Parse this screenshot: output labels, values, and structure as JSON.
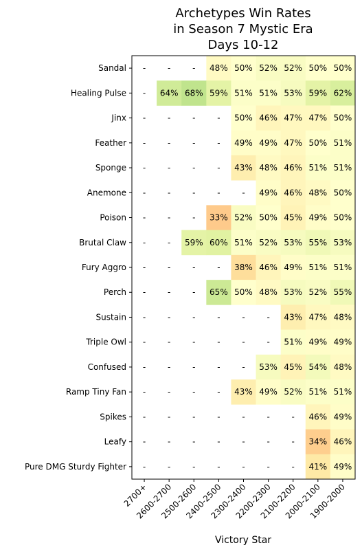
{
  "chart_data": {
    "type": "heatmap",
    "title": [
      "Archetypes Win Rates",
      "in Season 7 Mystic Era",
      "Days 10-12"
    ],
    "xlabel": "Victory Star",
    "ylabel": "",
    "x": [
      "2700+",
      "2600-2700",
      "2500-2600",
      "2400-2500",
      "2300-2400",
      "2200-2300",
      "2100-2200",
      "2000-2100",
      "1900-2000"
    ],
    "y": [
      "Sandal",
      "Healing Pulse",
      "Jinx",
      "Feather",
      "Sponge",
      "Anemone",
      "Poison",
      "Brutal Claw",
      "Fury Aggro",
      "Perch",
      "Sustain",
      "Triple Owl",
      "Confused",
      "Ramp Tiny Fan",
      "Spikes",
      "Leafy",
      "Pure DMG Sturdy Fighter"
    ],
    "values": [
      [
        null,
        null,
        null,
        48,
        50,
        52,
        52,
        50,
        50
      ],
      [
        null,
        64,
        68,
        59,
        51,
        51,
        53,
        59,
        62
      ],
      [
        null,
        null,
        null,
        null,
        50,
        46,
        47,
        47,
        50
      ],
      [
        null,
        null,
        null,
        null,
        49,
        49,
        47,
        50,
        51
      ],
      [
        null,
        null,
        null,
        null,
        43,
        48,
        46,
        51,
        51
      ],
      [
        null,
        null,
        null,
        null,
        null,
        49,
        46,
        48,
        50
      ],
      [
        null,
        null,
        null,
        33,
        52,
        50,
        45,
        49,
        50
      ],
      [
        null,
        null,
        59,
        60,
        51,
        52,
        53,
        55,
        53
      ],
      [
        null,
        null,
        null,
        null,
        38,
        46,
        49,
        51,
        51
      ],
      [
        null,
        null,
        null,
        65,
        50,
        48,
        53,
        52,
        55
      ],
      [
        null,
        null,
        null,
        null,
        null,
        null,
        43,
        47,
        48
      ],
      [
        null,
        null,
        null,
        null,
        null,
        null,
        51,
        49,
        49
      ],
      [
        null,
        null,
        null,
        null,
        null,
        53,
        45,
        54,
        48
      ],
      [
        null,
        null,
        null,
        null,
        43,
        49,
        52,
        51,
        51
      ],
      [
        null,
        null,
        null,
        null,
        null,
        null,
        null,
        46,
        49
      ],
      [
        null,
        null,
        null,
        null,
        null,
        null,
        null,
        34,
        46
      ],
      [
        null,
        null,
        null,
        null,
        null,
        null,
        null,
        41,
        49
      ]
    ],
    "value_suffix": "%",
    "missing_text": "-",
    "colormap": "RdYlGn",
    "color_range": [
      0,
      100
    ],
    "grid": false,
    "legend": "none"
  }
}
